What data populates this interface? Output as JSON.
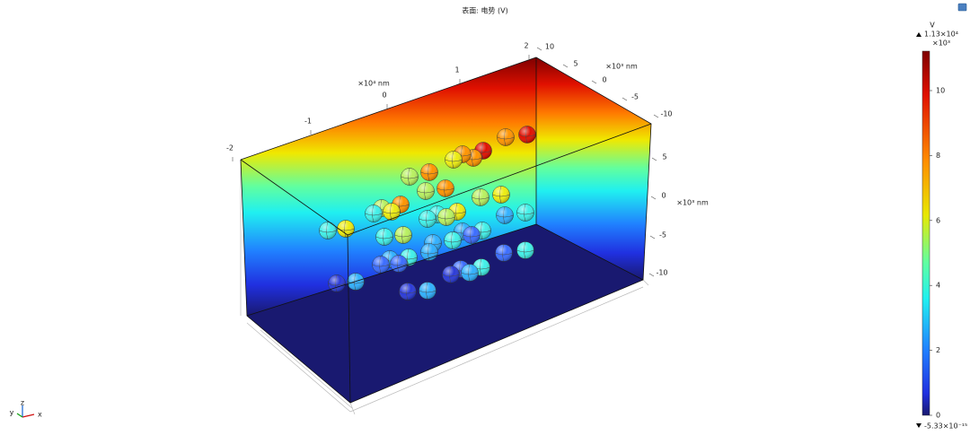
{
  "title": "表面: 电势 (V)",
  "axes": {
    "x": {
      "unit": "×10⁴ nm",
      "ticks": [
        -2,
        -1,
        0,
        1,
        2
      ]
    },
    "y": {
      "unit": "×10³ nm",
      "ticks": [
        10,
        5,
        0,
        -5,
        -10
      ]
    },
    "z": {
      "unit": "×10³ nm",
      "ticks": [
        5,
        0,
        -5,
        -10
      ]
    }
  },
  "colorbar": {
    "unit": "V",
    "max_label": "1.13×10⁴",
    "scale": "×10³",
    "ticks": [
      0,
      2,
      4,
      6,
      8,
      10
    ],
    "min_label": "-5.33×10⁻¹⁵"
  },
  "triad": {
    "z": "z",
    "y": "y",
    "x": "x"
  }
}
